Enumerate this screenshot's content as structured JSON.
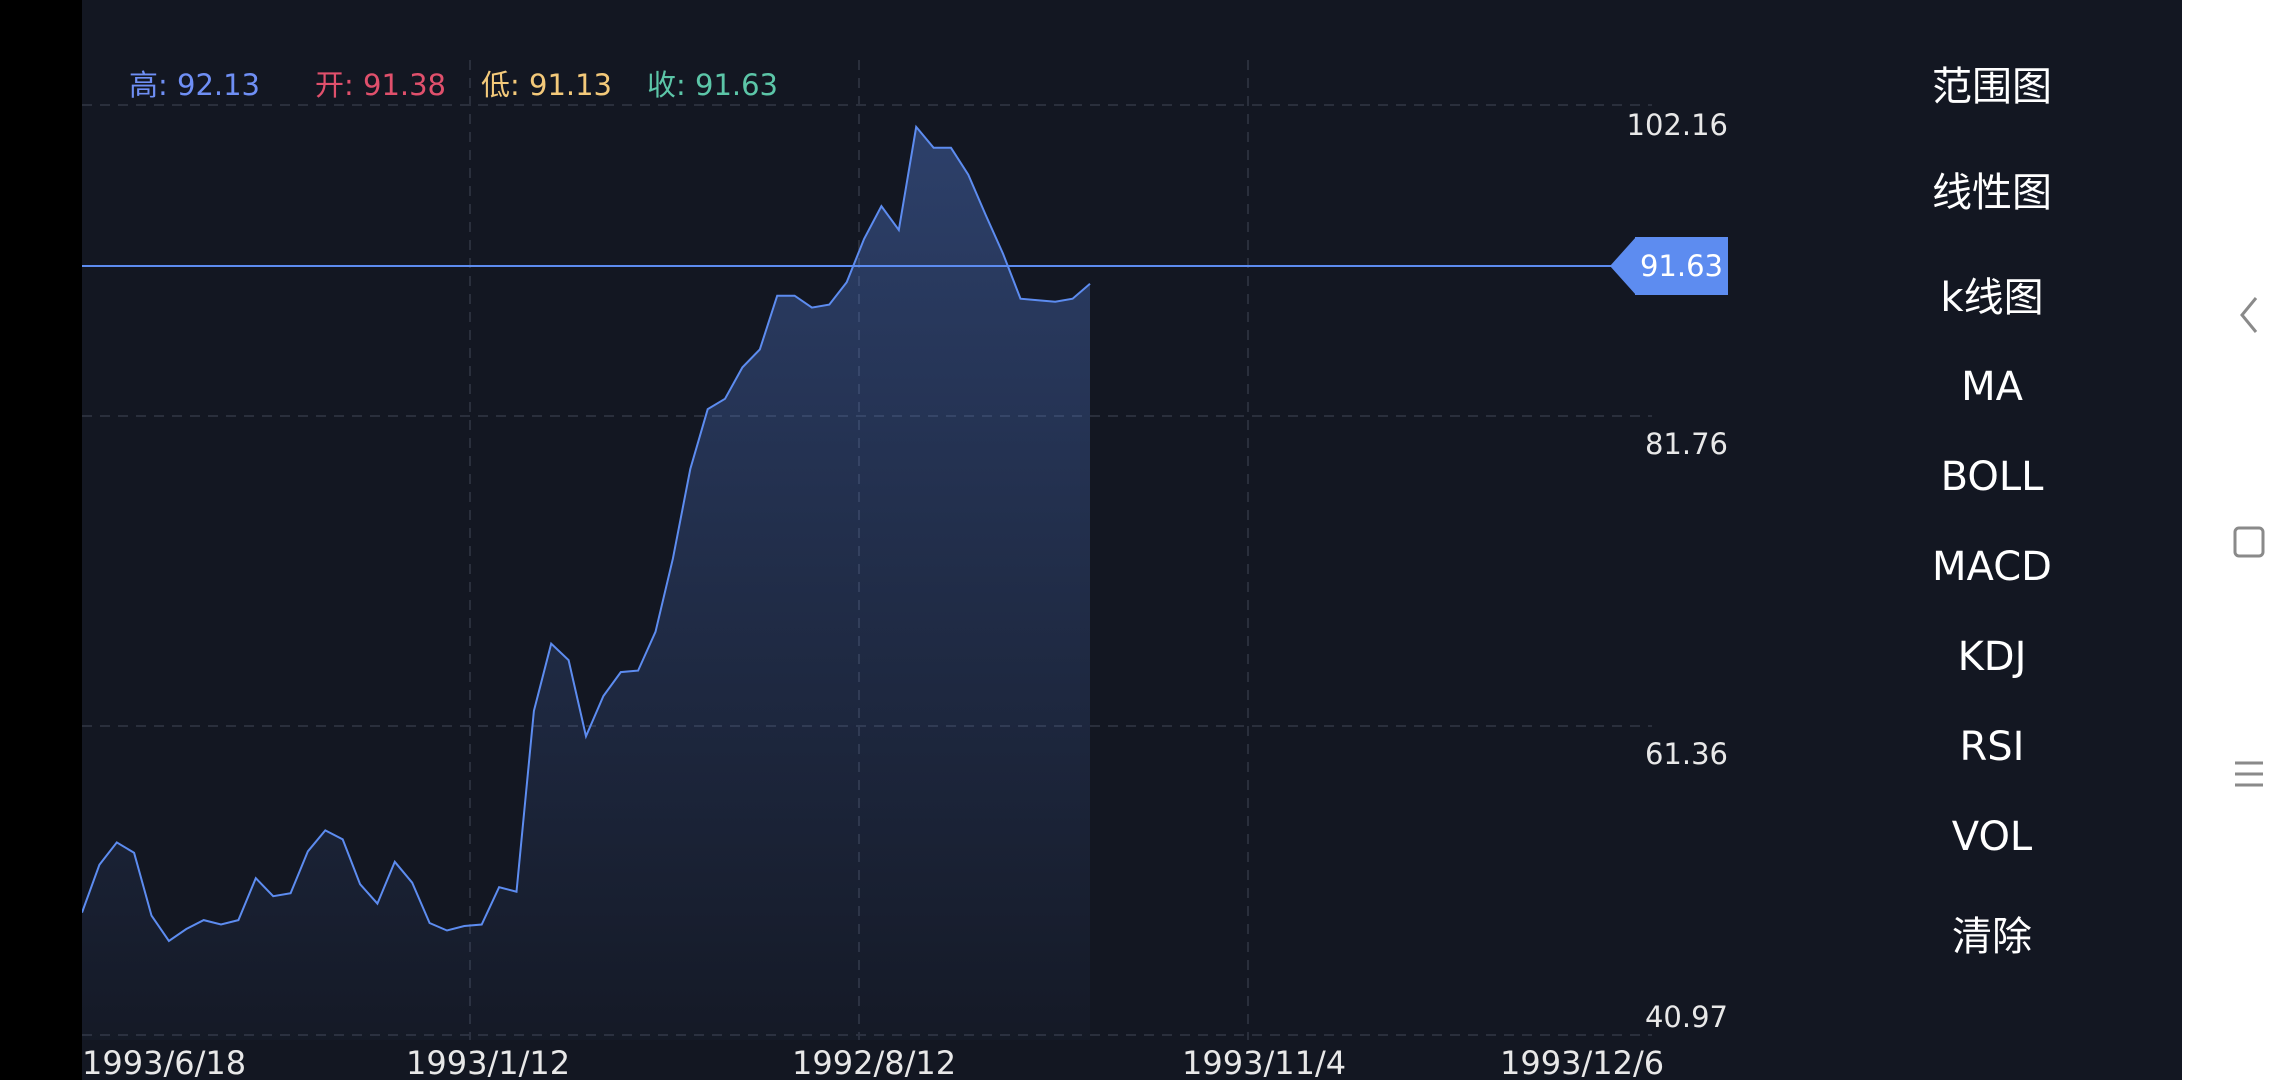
{
  "ohlc": {
    "high": "高: 92.13",
    "open": "开: 91.38",
    "low": "低: 91.13",
    "close": "收: 91.63",
    "colors": {
      "high": "#6f8ff5",
      "open": "#e0506c",
      "low": "#f3c97a",
      "close": "#5cc6a8"
    }
  },
  "price_badge": "91.63",
  "menu": {
    "items": [
      "范围图",
      "线性图",
      "k线图",
      "MA",
      "BOLL",
      "MACD",
      "KDJ",
      "RSI",
      "VOL",
      "清除"
    ]
  },
  "nav": {
    "back_icon": "chevron-left-icon",
    "home_icon": "square-icon",
    "menu_icon": "hamburger-icon"
  },
  "chart_data": {
    "type": "area",
    "y_ticks": [
      "102.16",
      "81.76",
      "61.36",
      "40.97"
    ],
    "x_ticks": [
      "1993/6/18",
      "1993/1/12",
      "1992/8/12",
      "1993/11/4",
      "1993/12/6"
    ],
    "ylim": [
      40.97,
      102.16
    ],
    "current_price": 91.63,
    "line_color": "#5d8cf0",
    "values": [
      49.5,
      52.7,
      54.2,
      53.5,
      49.3,
      47.6,
      48.4,
      49.0,
      48.7,
      49.0,
      51.8,
      50.6,
      50.8,
      53.6,
      55.0,
      54.4,
      51.4,
      50.1,
      52.9,
      51.5,
      48.8,
      48.3,
      48.6,
      48.7,
      51.2,
      50.9,
      63.0,
      67.5,
      66.4,
      61.3,
      64.0,
      65.6,
      65.7,
      68.3,
      73.2,
      79.2,
      83.2,
      83.9,
      86.0,
      87.2,
      90.8,
      90.8,
      90.0,
      90.2,
      91.7,
      94.6,
      96.8,
      95.2,
      102.1,
      100.7,
      100.7,
      98.9,
      96.2,
      93.6,
      90.6,
      90.5,
      90.4,
      90.6,
      91.6
    ]
  }
}
